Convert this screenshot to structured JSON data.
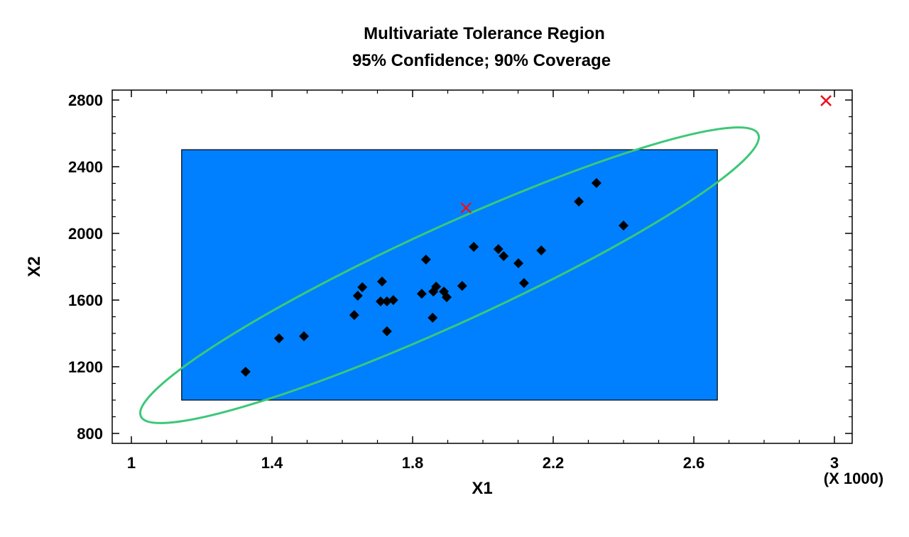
{
  "chart_data": {
    "type": "scatter",
    "title": "Multivariate Tolerance Region",
    "subtitle": "95% Confidence; 90% Coverage",
    "xlabel": "X1",
    "ylabel": "X2",
    "x_scale_note": "(X 1000)",
    "xlim": [
      0.97,
      3.05
    ],
    "ylim": [
      740,
      2870
    ],
    "xticks": [
      1,
      1.4,
      1.8,
      2.2,
      2.6,
      3
    ],
    "xtick_labels": [
      "1",
      "1.4",
      "1.8",
      "2.2",
      "2.6",
      "3"
    ],
    "yticks": [
      800,
      1200,
      1600,
      2000,
      2400,
      2800
    ],
    "ytick_labels": [
      "800",
      "1200",
      "1600",
      "2000",
      "2400",
      "2800"
    ],
    "grid": false,
    "points": [
      [
        1.325,
        1170
      ],
      [
        1.42,
        1370
      ],
      [
        1.491,
        1383
      ],
      [
        1.634,
        1510
      ],
      [
        1.644,
        1626
      ],
      [
        1.657,
        1677
      ],
      [
        1.713,
        1711
      ],
      [
        1.709,
        1592
      ],
      [
        1.727,
        1592
      ],
      [
        1.745,
        1600
      ],
      [
        1.727,
        1413
      ],
      [
        1.826,
        1638
      ],
      [
        1.838,
        1843
      ],
      [
        1.857,
        1494
      ],
      [
        1.859,
        1651
      ],
      [
        1.867,
        1681
      ],
      [
        1.889,
        1651
      ],
      [
        1.897,
        1617
      ],
      [
        1.941,
        1685
      ],
      [
        1.974,
        1919
      ],
      [
        2.044,
        1906
      ],
      [
        2.059,
        1864
      ],
      [
        2.101,
        1821
      ],
      [
        2.117,
        1702
      ],
      [
        2.166,
        1898
      ],
      [
        2.273,
        2191
      ],
      [
        2.323,
        2302
      ],
      [
        2.4,
        2047
      ]
    ],
    "marked_points": [
      [
        1.952,
        2153
      ],
      [
        2.976,
        2796
      ]
    ],
    "tolerance_rectangle": {
      "x": [
        1.143,
        2.667
      ],
      "y": [
        1000,
        2502
      ]
    },
    "colors": {
      "rectangle": "#0080FF",
      "ellipse": "#3CC878",
      "points": "#000000",
      "marked": "#E8141E"
    }
  }
}
